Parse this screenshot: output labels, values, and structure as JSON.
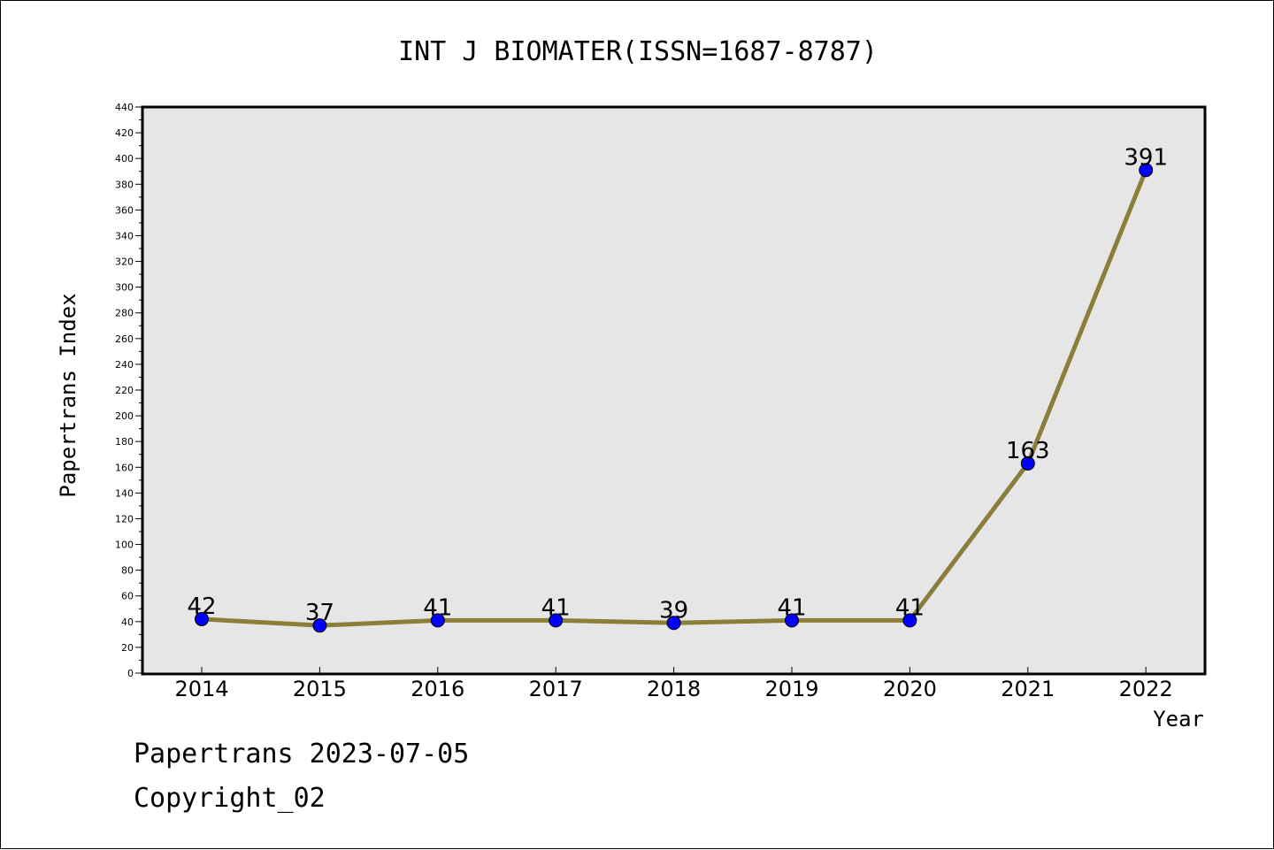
{
  "chart_data": {
    "type": "line",
    "title": "INT J BIOMATER(ISSN=1687-8787)",
    "xlabel": "Year",
    "ylabel": "Papertrans Index",
    "categories": [
      "2014",
      "2015",
      "2016",
      "2017",
      "2018",
      "2019",
      "2020",
      "2021",
      "2022"
    ],
    "series": [
      {
        "values": [
          42,
          37,
          41,
          41,
          39,
          41,
          41,
          163,
          391
        ]
      }
    ],
    "data_labels": [
      "42",
      "37",
      "41",
      "41",
      "39",
      "41",
      "41",
      "163",
      "391"
    ],
    "ylim": [
      0,
      440
    ],
    "y_ticks": [
      "0",
      "20",
      "40",
      "60",
      "80",
      "100",
      "120",
      "140",
      "160",
      "180",
      "200",
      "220",
      "240",
      "260",
      "280",
      "300",
      "320",
      "340",
      "360",
      "380",
      "400",
      "420",
      "440"
    ],
    "grid": false,
    "colors": {
      "line": "#8b7d3a",
      "marker_fill": "#0000ff",
      "plot_background": "#e6e6e6"
    }
  },
  "footer": {
    "line1": "Papertrans 2023-07-05",
    "line2": "Copyright_02"
  }
}
